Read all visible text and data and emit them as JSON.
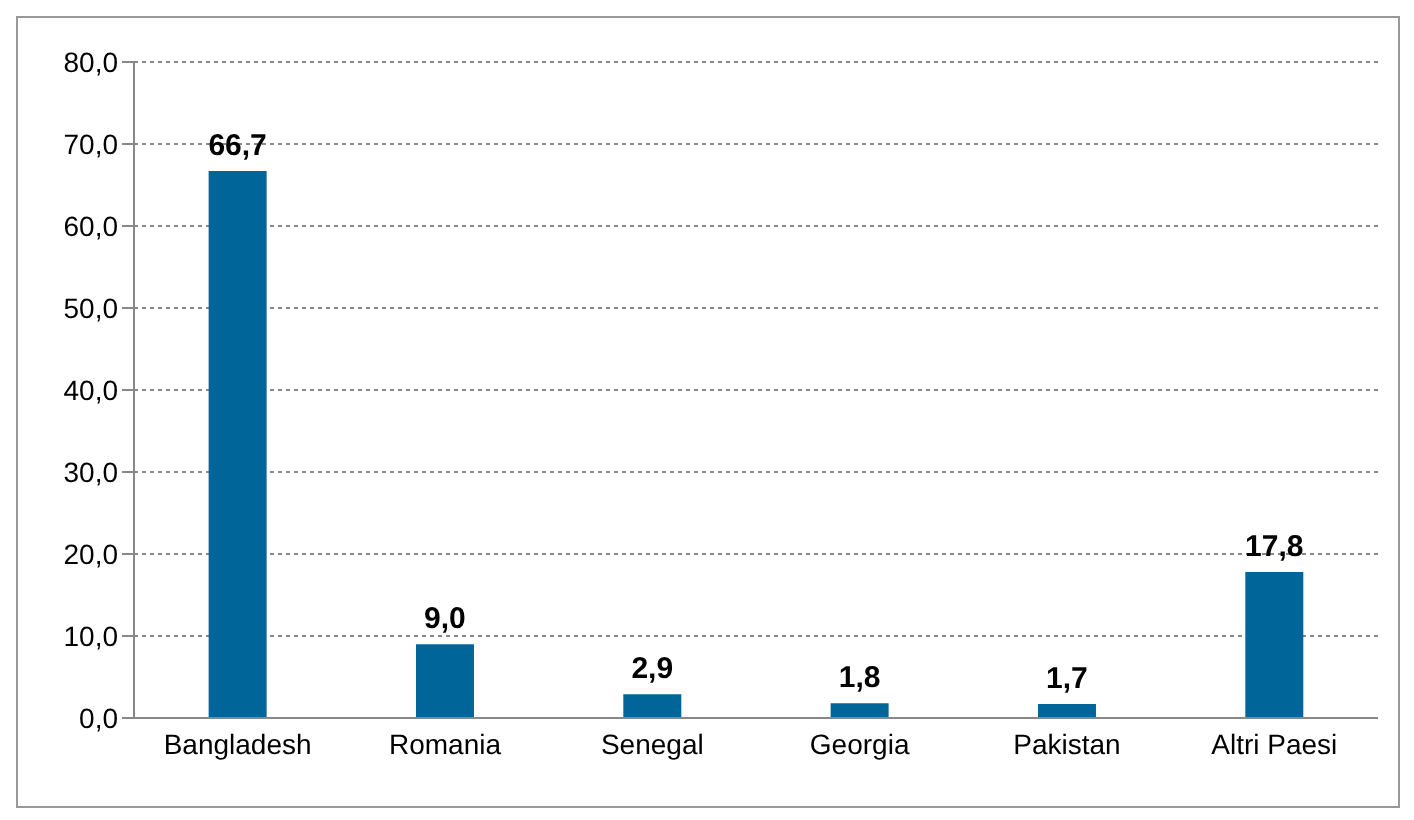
{
  "chart_data": {
    "type": "bar",
    "categories": [
      "Bangladesh",
      "Romania",
      "Senegal",
      "Georgia",
      "Pakistan",
      "Altri Paesi"
    ],
    "values": [
      66.7,
      9.0,
      2.9,
      1.8,
      1.7,
      17.8
    ],
    "value_labels": [
      "66,7",
      "9,0",
      "2,9",
      "1,8",
      "1,7",
      "17,8"
    ],
    "color": "#006699",
    "ylim": [
      0,
      80
    ],
    "yticks": [
      {
        "value": 0,
        "label": "0,0"
      },
      {
        "value": 10,
        "label": "10,0"
      },
      {
        "value": 20,
        "label": "20,0"
      },
      {
        "value": 30,
        "label": "30,0"
      },
      {
        "value": 40,
        "label": "40,0"
      },
      {
        "value": 50,
        "label": "50,0"
      },
      {
        "value": 60,
        "label": "60,0"
      },
      {
        "value": 70,
        "label": "70,0"
      },
      {
        "value": 80,
        "label": "80,0"
      }
    ],
    "grid": "y"
  }
}
